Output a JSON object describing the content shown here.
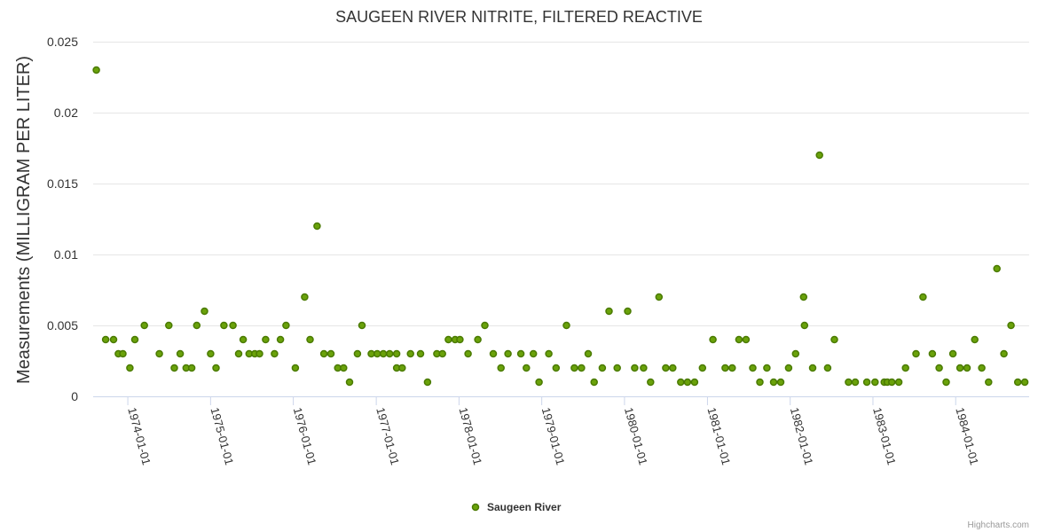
{
  "chart_data": {
    "type": "scatter",
    "title": "SAUGEEN RIVER NITRITE, FILTERED REACTIVE",
    "ylabel": "Measurements (MILLIGRAM PER LITER)",
    "xlabel": "",
    "ylim": [
      0,
      0.025
    ],
    "yticks": [
      "0",
      "0.005",
      "0.01",
      "0.015",
      "0.02",
      "0.025"
    ],
    "xlim": [
      "1973-08-01",
      "1984-11-20"
    ],
    "xticks": [
      "1974-01-01",
      "1975-01-01",
      "1976-01-01",
      "1977-01-01",
      "1978-01-01",
      "1979-01-01",
      "1980-01-01",
      "1981-01-01",
      "1982-01-01",
      "1983-01-01",
      "1984-01-01"
    ],
    "grid": "horizontal",
    "legend_position": "bottom-center",
    "marker_color": "#6aa20a",
    "marker_stroke": "#4a7a00",
    "series": [
      {
        "name": "Saugeen River",
        "points": [
          [
            "1973-08-15",
            0.023
          ],
          [
            "1973-09-25",
            0.004
          ],
          [
            "1973-10-30",
            0.004
          ],
          [
            "1973-11-20",
            0.003
          ],
          [
            "1973-12-10",
            0.003
          ],
          [
            "1974-01-10",
            0.002
          ],
          [
            "1974-02-01",
            0.004
          ],
          [
            "1974-03-15",
            0.005
          ],
          [
            "1974-05-20",
            0.003
          ],
          [
            "1974-07-01",
            0.005
          ],
          [
            "1974-07-25",
            0.002
          ],
          [
            "1974-08-20",
            0.003
          ],
          [
            "1974-09-15",
            0.002
          ],
          [
            "1974-10-10",
            0.002
          ],
          [
            "1974-11-01",
            0.005
          ],
          [
            "1974-12-05",
            0.006
          ],
          [
            "1975-01-01",
            0.003
          ],
          [
            "1975-01-25",
            0.002
          ],
          [
            "1975-03-01",
            0.005
          ],
          [
            "1975-04-10",
            0.005
          ],
          [
            "1975-05-05",
            0.003
          ],
          [
            "1975-05-25",
            0.004
          ],
          [
            "1975-06-20",
            0.003
          ],
          [
            "1975-07-15",
            0.003
          ],
          [
            "1975-08-05",
            0.003
          ],
          [
            "1975-09-01",
            0.004
          ],
          [
            "1975-10-10",
            0.003
          ],
          [
            "1975-11-05",
            0.004
          ],
          [
            "1975-11-30",
            0.005
          ],
          [
            "1976-01-10",
            0.002
          ],
          [
            "1976-02-20",
            0.007
          ],
          [
            "1976-03-15",
            0.004
          ],
          [
            "1976-04-15",
            0.012
          ],
          [
            "1976-05-15",
            0.003
          ],
          [
            "1976-06-15",
            0.003
          ],
          [
            "1976-07-15",
            0.002
          ],
          [
            "1976-08-10",
            0.002
          ],
          [
            "1976-09-05",
            0.001
          ],
          [
            "1976-10-10",
            0.003
          ],
          [
            "1976-10-30",
            0.005
          ],
          [
            "1976-12-10",
            0.003
          ],
          [
            "1977-01-05",
            0.003
          ],
          [
            "1977-02-01",
            0.003
          ],
          [
            "1977-03-01",
            0.003
          ],
          [
            "1977-04-01",
            0.002
          ],
          [
            "1977-04-01",
            0.003
          ],
          [
            "1977-04-25",
            0.002
          ],
          [
            "1977-06-01",
            0.003
          ],
          [
            "1977-07-15",
            0.003
          ],
          [
            "1977-08-15",
            0.001
          ],
          [
            "1977-09-25",
            0.003
          ],
          [
            "1977-10-20",
            0.003
          ],
          [
            "1977-11-15",
            0.004
          ],
          [
            "1977-12-15",
            0.004
          ],
          [
            "1978-01-05",
            0.004
          ],
          [
            "1978-02-10",
            0.003
          ],
          [
            "1978-03-25",
            0.004
          ],
          [
            "1978-04-25",
            0.005
          ],
          [
            "1978-06-01",
            0.003
          ],
          [
            "1978-07-05",
            0.002
          ],
          [
            "1978-08-05",
            0.003
          ],
          [
            "1978-10-01",
            0.003
          ],
          [
            "1978-10-25",
            0.002
          ],
          [
            "1978-11-25",
            0.003
          ],
          [
            "1978-12-20",
            0.001
          ],
          [
            "1979-02-01",
            0.003
          ],
          [
            "1979-03-05",
            0.002
          ],
          [
            "1979-04-20",
            0.005
          ],
          [
            "1979-05-25",
            0.002
          ],
          [
            "1979-06-25",
            0.002
          ],
          [
            "1979-07-25",
            0.003
          ],
          [
            "1979-08-20",
            0.001
          ],
          [
            "1979-09-25",
            0.002
          ],
          [
            "1979-10-25",
            0.006
          ],
          [
            "1979-11-30",
            0.002
          ],
          [
            "1980-01-15",
            0.006
          ],
          [
            "1980-02-15",
            0.002
          ],
          [
            "1980-03-25",
            0.002
          ],
          [
            "1980-04-25",
            0.001
          ],
          [
            "1980-06-01",
            0.007
          ],
          [
            "1980-07-01",
            0.002
          ],
          [
            "1980-08-01",
            0.002
          ],
          [
            "1980-09-05",
            0.001
          ],
          [
            "1980-10-05",
            0.001
          ],
          [
            "1980-11-05",
            0.001
          ],
          [
            "1980-12-10",
            0.002
          ],
          [
            "1981-01-25",
            0.004
          ],
          [
            "1981-03-20",
            0.002
          ],
          [
            "1981-04-20",
            0.002
          ],
          [
            "1981-05-20",
            0.004
          ],
          [
            "1981-06-20",
            0.004
          ],
          [
            "1981-07-20",
            0.002
          ],
          [
            "1981-08-20",
            0.001
          ],
          [
            "1981-09-20",
            0.002
          ],
          [
            "1981-10-20",
            0.001
          ],
          [
            "1981-11-20",
            0.001
          ],
          [
            "1981-12-25",
            0.002
          ],
          [
            "1982-01-25",
            0.003
          ],
          [
            "1982-03-01",
            0.007
          ],
          [
            "1982-03-05",
            0.005
          ],
          [
            "1982-04-10",
            0.002
          ],
          [
            "1982-05-10",
            0.017
          ],
          [
            "1982-06-15",
            0.002
          ],
          [
            "1982-07-15",
            0.004
          ],
          [
            "1982-09-15",
            0.001
          ],
          [
            "1982-10-15",
            0.001
          ],
          [
            "1982-12-05",
            0.001
          ],
          [
            "1983-01-10",
            0.001
          ],
          [
            "1983-02-20",
            0.001
          ],
          [
            "1983-03-05",
            0.001
          ],
          [
            "1983-03-25",
            0.001
          ],
          [
            "1983-04-25",
            0.001
          ],
          [
            "1983-05-25",
            0.002
          ],
          [
            "1983-07-10",
            0.003
          ],
          [
            "1983-08-10",
            0.007
          ],
          [
            "1983-09-20",
            0.003
          ],
          [
            "1983-10-20",
            0.002
          ],
          [
            "1983-11-20",
            0.001
          ],
          [
            "1983-12-20",
            0.003
          ],
          [
            "1984-01-20",
            0.002
          ],
          [
            "1984-02-20",
            0.002
          ],
          [
            "1984-03-25",
            0.004
          ],
          [
            "1984-04-25",
            0.002
          ],
          [
            "1984-05-25",
            0.001
          ],
          [
            "1984-07-01",
            0.009
          ],
          [
            "1984-08-01",
            0.003
          ],
          [
            "1984-09-01",
            0.005
          ],
          [
            "1984-10-01",
            0.001
          ],
          [
            "1984-11-01",
            0.001
          ]
        ]
      }
    ]
  },
  "legend": {
    "label": "Saugeen River"
  },
  "credits": "Highcharts.com"
}
